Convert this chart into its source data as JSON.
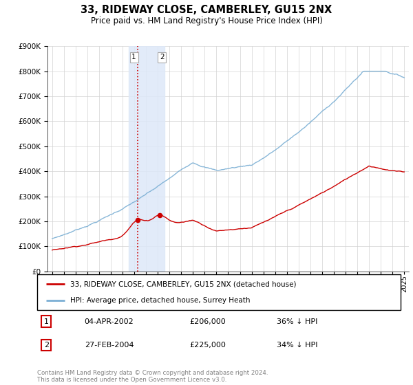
{
  "title": "33, RIDEWAY CLOSE, CAMBERLEY, GU15 2NX",
  "subtitle": "Price paid vs. HM Land Registry's House Price Index (HPI)",
  "legend_label_red": "33, RIDEWAY CLOSE, CAMBERLEY, GU15 2NX (detached house)",
  "legend_label_blue": "HPI: Average price, detached house, Surrey Heath",
  "sale1_date": "04-APR-2002",
  "sale1_price": 206000,
  "sale1_year": 2002.27,
  "sale2_date": "27-FEB-2004",
  "sale2_price": 225000,
  "sale2_year": 2004.15,
  "sale1_pct": "36% ↓ HPI",
  "sale2_pct": "34% ↓ HPI",
  "footer": "Contains HM Land Registry data © Crown copyright and database right 2024.\nThis data is licensed under the Open Government Licence v3.0.",
  "ylim": [
    0,
    900000
  ],
  "color_red": "#cc0000",
  "color_blue": "#7bafd4",
  "color_shade": "#dde8f8",
  "shade_x1": 2001.5,
  "shade_x2": 2004.6,
  "vline_x": 2002.27,
  "xmin": 1994.6,
  "xmax": 2025.4,
  "title_fontsize": 10.5,
  "subtitle_fontsize": 8.5
}
